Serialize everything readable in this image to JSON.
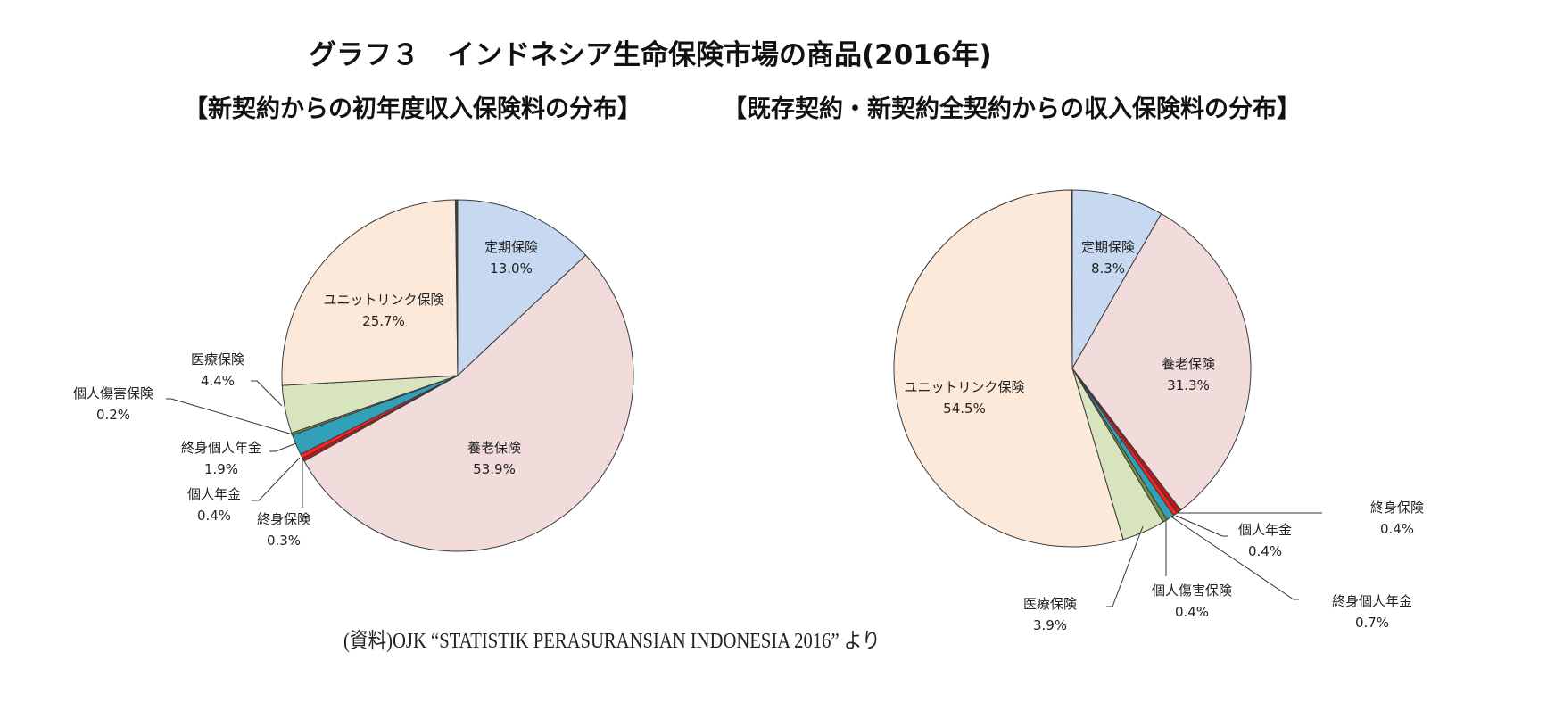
{
  "title": "グラフ３　インドネシア生命保険市場の商品(2016年)",
  "subtitles": {
    "left": "【新契約からの初年度収入保険料の分布】",
    "right": "【既存契約・新契約全契約からの収入保険料の分布】"
  },
  "source": "(資料)OJK “STATISTIK PERASURANSIAN INDONESIA 2016” より",
  "colors": {
    "定期保険": "#c6d9f0",
    "養老保険": "#f2dcdb",
    "終身保険": "#c0151b",
    "個人年金": "#ff2020",
    "終身個人年金": "#31a0b8",
    "個人傷害保険": "#76923c",
    "医療保険": "#d7e4bd",
    "ユニットリンク保険": "#fde9d9",
    "その他": "#404040"
  },
  "chart_data": [
    {
      "type": "pie",
      "title": "【新契約からの初年度収入保険料の分布】",
      "categories": [
        "定期保険",
        "養老保険",
        "終身保険",
        "個人年金",
        "終身個人年金",
        "個人傷害保険",
        "医療保険",
        "ユニットリンク保険"
      ],
      "values": [
        13.0,
        53.9,
        0.3,
        0.4,
        1.9,
        0.2,
        4.4,
        25.7
      ],
      "labels": [
        "13.0%",
        "53.9%",
        "0.3%",
        "0.4%",
        "1.9%",
        "0.2%",
        "4.4%",
        "25.7%"
      ],
      "start_angle": "12 o'clock",
      "direction": "clockwise",
      "unit": "%"
    },
    {
      "type": "pie",
      "title": "【既存契約・新契約全契約からの収入保険料の分布】",
      "categories": [
        "定期保険",
        "養老保険",
        "終身保険",
        "個人年金",
        "終身個人年金",
        "個人傷害保険",
        "医療保険",
        "ユニットリンク保険"
      ],
      "values": [
        8.3,
        31.3,
        0.4,
        0.4,
        0.7,
        0.4,
        3.9,
        54.5
      ],
      "labels": [
        "8.3%",
        "31.3%",
        "0.4%",
        "0.4%",
        "0.7%",
        "0.4%",
        "3.9%",
        "54.5%"
      ],
      "start_angle": "12 o'clock",
      "direction": "clockwise",
      "unit": "%"
    }
  ]
}
